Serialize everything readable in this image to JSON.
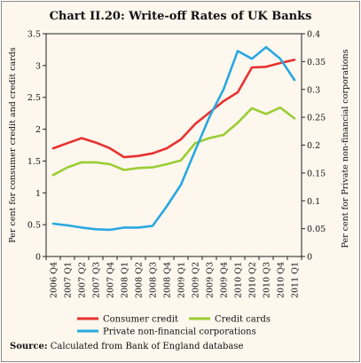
{
  "chart_data": {
    "type": "line",
    "title": "Chart II.20: Write-off Rates of UK Banks",
    "ylabel_left": "Per cent for consumer credit and credit cards",
    "ylabel_right": "Per cent for Private non-financial corporations",
    "ylim_left": [
      0,
      3.5
    ],
    "ylim_right": [
      0,
      0.4
    ],
    "yticks_left": [
      "0",
      "0.5",
      "1",
      "1.5",
      "2",
      "2.5",
      "3",
      "3.5"
    ],
    "yticks_right": [
      "0",
      "0.05",
      "0.1",
      "0.15",
      "0.2",
      "0.25",
      "0.3",
      "0.35",
      "0.4"
    ],
    "categories": [
      "2006 Q4",
      "2007 Q1",
      "2007 Q2",
      "2007 Q3",
      "2007 Q4",
      "2008 Q1",
      "2008 Q2",
      "2008 Q3",
      "2008 Q4",
      "2009 Q1",
      "2009 Q2",
      "2009 Q3",
      "2009 Q4",
      "2010 Q1",
      "2010 Q2",
      "2010 Q3",
      "2010 Q4",
      "2011 Q1"
    ],
    "grid": false,
    "legend_position": "bottom",
    "series": [
      {
        "name": "Consumer credit",
        "axis": "left",
        "color": "#e8312f",
        "values": [
          1.7,
          1.78,
          1.86,
          1.79,
          1.7,
          1.56,
          1.58,
          1.62,
          1.7,
          1.84,
          2.08,
          2.26,
          2.44,
          2.58,
          2.97,
          2.98,
          3.04,
          3.09
        ]
      },
      {
        "name": "Credit cards",
        "axis": "left",
        "color": "#9acd32",
        "values": [
          1.28,
          1.4,
          1.48,
          1.48,
          1.45,
          1.36,
          1.39,
          1.4,
          1.45,
          1.51,
          1.78,
          1.86,
          1.91,
          2.1,
          2.33,
          2.24,
          2.34,
          2.17
        ]
      },
      {
        "name": "Private non-financial corporations",
        "axis": "right",
        "color": "#29a8e0",
        "values": [
          0.059,
          0.056,
          0.052,
          0.049,
          0.048,
          0.052,
          0.052,
          0.055,
          0.09,
          0.129,
          0.19,
          0.25,
          0.3,
          0.369,
          0.355,
          0.376,
          0.355,
          0.317
        ]
      }
    ]
  },
  "source": {
    "label": "Source:",
    "text": " Calculated from Bank of England database"
  }
}
